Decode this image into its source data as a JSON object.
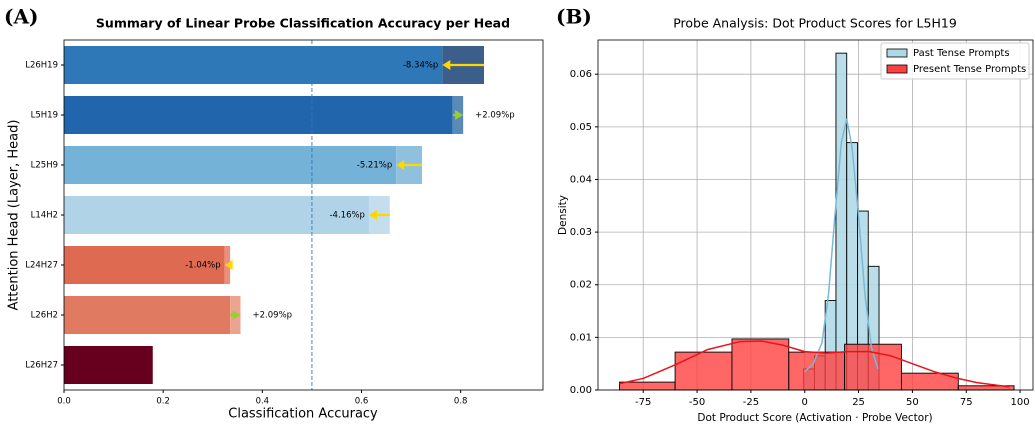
{
  "chart_data": [
    {
      "type": "hbar_change",
      "panel_label": "(A)",
      "title": "Summary of Linear Probe Classification Accuracy per Head",
      "x_label": "Classification Accuracy",
      "y_label": "Attention Head (Layer, Head)",
      "categories": [
        "L26H19",
        "L5H19",
        "L25H9",
        "L14H2",
        "L24H27",
        "L26H2",
        "L26H27"
      ],
      "values_before": [
        0.847,
        0.784,
        0.722,
        0.657,
        0.335,
        0.335,
        0.179
      ],
      "values_after": [
        0.763,
        0.805,
        0.67,
        0.615,
        0.324,
        0.356,
        null
      ],
      "change_labels": [
        "-8.34%p",
        "+2.09%p",
        "-5.21%p",
        "-4.16%p",
        "-1.04%p",
        "+2.09%p",
        null
      ],
      "colors": [
        "#2e78b8",
        "#2166ac",
        "#75b2d8",
        "#b1d3e8",
        "#de6a52",
        "#e07b62",
        "#67001f"
      ],
      "change_colors": [
        "#3b5f8a",
        "#5a8ab8",
        "#8fc0de",
        "#c4deed",
        "#ea8e7d",
        "#eca491",
        null
      ],
      "increase_color": "#9acd32",
      "decrease_color": "#ffd700",
      "reference_line": 0.5,
      "reference_color": "#2e78b8",
      "xlim": [
        0,
        0.966
      ],
      "xticks": [
        {
          "value": 0,
          "label": "0.0"
        },
        0.2,
        0.4,
        0.6,
        0.8
      ]
    },
    {
      "type": "histogram",
      "panel_label": "(B)",
      "title": "Probe Analysis: Dot Product Scores for L5H19",
      "x_label": "Dot Product Score (Activation · Probe Vector)",
      "y_label": "Density",
      "grid": true,
      "legend": "upper right",
      "xlim": [
        -96,
        106
      ],
      "ylim": [
        0,
        0.0665
      ],
      "xticks": [
        -75,
        -50,
        -25,
        0,
        25,
        50,
        75,
        100
      ],
      "yticks": [
        {
          "value": 0,
          "label": "0.00"
        },
        0.01,
        0.02,
        0.03,
        0.04,
        0.05,
        0.06
      ],
      "series": [
        {
          "name": "Past Tense Prompts",
          "color": "#add8e6",
          "line_color": "#7ab8d4",
          "bins": [
            -0.5,
            4.5,
            9.5,
            14.5,
            19.5,
            24.5,
            29.5,
            34.5
          ],
          "values": [
            0.004,
            0.0065,
            0.017,
            0.064,
            0.047,
            0.034,
            0.0235
          ],
          "kde_x": [
            0,
            4,
            8,
            11,
            14,
            17,
            19.5,
            22,
            25,
            28,
            31,
            34
          ],
          "kde_y": [
            0.0035,
            0.005,
            0.009,
            0.018,
            0.033,
            0.047,
            0.0515,
            0.046,
            0.033,
            0.018,
            0.008,
            0.004
          ]
        },
        {
          "name": "Present Tense Prompts",
          "color": "#ff4040",
          "line_color": "#e8141a",
          "bins": [
            -86,
            -60.2,
            -33.8,
            -7.4,
            18.5,
            44.9,
            71.3,
            97.2
          ],
          "values": [
            0.0015,
            0.0072,
            0.0097,
            0.0072,
            0.0087,
            0.0032,
            0.0008
          ],
          "kde_x": [
            -86,
            -75,
            -60,
            -45,
            -30,
            -20,
            -10,
            0,
            10,
            20,
            30,
            40,
            50,
            60,
            70,
            80,
            95
          ],
          "kde_y": [
            0.0012,
            0.0022,
            0.0048,
            0.0077,
            0.0092,
            0.0093,
            0.0085,
            0.0073,
            0.007,
            0.0073,
            0.0073,
            0.0065,
            0.005,
            0.0035,
            0.0023,
            0.0014,
            0.0006
          ]
        }
      ]
    }
  ]
}
